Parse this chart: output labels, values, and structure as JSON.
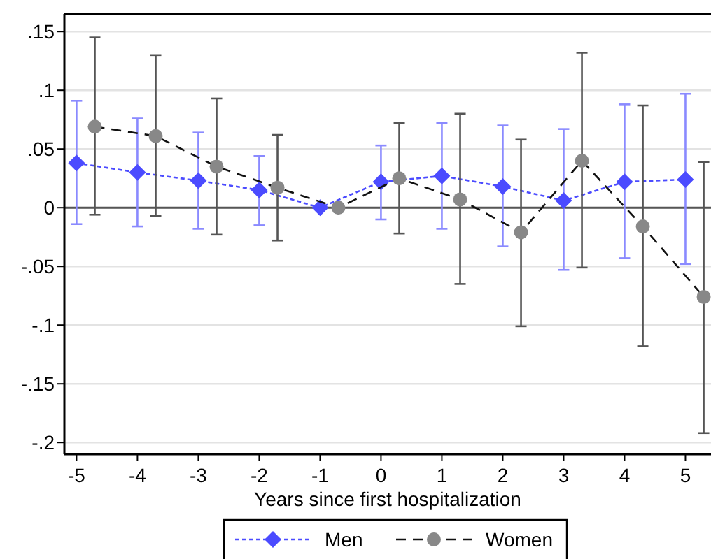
{
  "chart_data": {
    "type": "line",
    "xlabel": "Years since first hospitalization",
    "xlim": [
      -5.2,
      5.42
    ],
    "xticks": [
      -5,
      -4,
      -3,
      -2,
      -1,
      0,
      1,
      2,
      3,
      4,
      5
    ],
    "ylim": [
      -0.21,
      0.165
    ],
    "yticks": [
      {
        "value": 0.15,
        "label": ".15"
      },
      {
        "value": 0.1,
        "label": ".1"
      },
      {
        "value": 0.05,
        "label": ".05"
      },
      {
        "value": 0,
        "label": "0"
      },
      {
        "value": -0.05,
        "label": "-.05"
      },
      {
        "value": -0.1,
        "label": "-.1"
      },
      {
        "value": -0.15,
        "label": "-.15"
      },
      {
        "value": -0.2,
        "label": "-.2"
      }
    ],
    "grid": "y",
    "legend": "bottom",
    "ref_lines": [
      {
        "axis": "y",
        "value": 0,
        "color": "#555555"
      }
    ],
    "series": [
      {
        "name": "Men",
        "color": "#4b4bff",
        "marker": "diamond",
        "line_style": "dotted",
        "x": [
          -5,
          -4,
          -3,
          -2,
          -1,
          0,
          1,
          2,
          3,
          4,
          5
        ],
        "values": [
          0.038,
          0.03,
          0.023,
          0.015,
          0,
          0.022,
          0.027,
          0.018,
          0.006,
          0.022,
          0.024
        ],
        "errors": [
          [
            -0.014,
            0.091
          ],
          [
            -0.016,
            0.076
          ],
          [
            -0.018,
            0.064
          ],
          [
            -0.015,
            0.044
          ],
          null,
          [
            -0.01,
            0.053
          ],
          [
            -0.018,
            0.072
          ],
          [
            -0.033,
            0.07
          ],
          [
            -0.053,
            0.067
          ],
          [
            -0.043,
            0.088
          ],
          [
            -0.048,
            0.097
          ]
        ]
      },
      {
        "name": "Women",
        "color": "#888888",
        "marker": "circle",
        "line_style": "dashed",
        "x": [
          -4.7,
          -3.7,
          -2.7,
          -1.7,
          -0.7,
          0.3,
          1.3,
          2.3,
          3.3,
          4.3,
          5.3
        ],
        "values": [
          0.069,
          0.061,
          0.035,
          0.017,
          0,
          0.025,
          0.007,
          -0.021,
          0.04,
          -0.016,
          -0.076
        ],
        "errors": [
          [
            -0.006,
            0.145
          ],
          [
            -0.007,
            0.13
          ],
          [
            -0.023,
            0.093
          ],
          [
            -0.028,
            0.062
          ],
          null,
          [
            -0.022,
            0.072
          ],
          [
            -0.065,
            0.08
          ],
          [
            -0.101,
            0.058
          ],
          [
            -0.051,
            0.132
          ],
          [
            -0.118,
            0.087
          ],
          [
            -0.192,
            0.039
          ]
        ]
      }
    ]
  }
}
